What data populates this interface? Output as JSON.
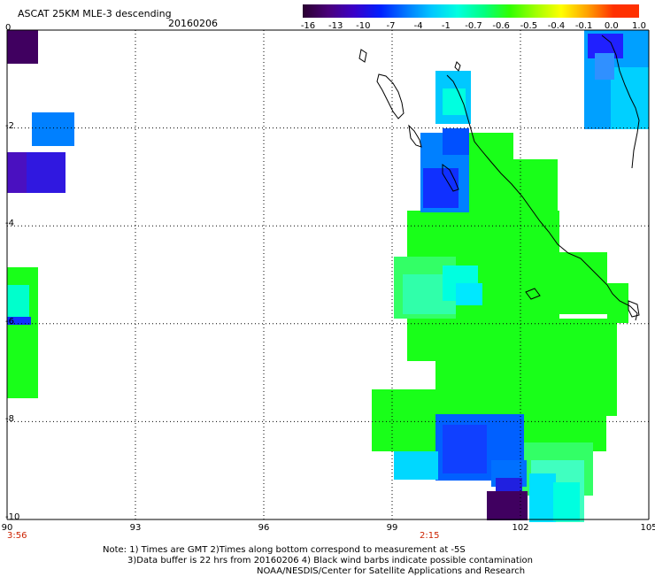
{
  "header": {
    "title": "ASCAT 25KM MLE-3 descending",
    "date": "20160206"
  },
  "colorbar": {
    "labels": [
      "-16",
      "-13",
      "-10",
      "-7",
      "-4",
      "-1",
      "-0.7",
      "-0.6",
      "-0.5",
      "-0.4",
      "-0.1",
      "0.0",
      "1.0"
    ],
    "colors": [
      "#2a0030",
      "#4a007a",
      "#3a00c8",
      "#0020ff",
      "#0078ff",
      "#00c8ff",
      "#00ffe0",
      "#00ff80",
      "#30ff00",
      "#a0ff00",
      "#ffff00",
      "#ffa000",
      "#ff3000"
    ]
  },
  "axes": {
    "x_ticks": [
      "90",
      "93",
      "96",
      "99",
      "102",
      "105"
    ],
    "y_ticks": [
      "0",
      "-2",
      "-4",
      "-6",
      "-8",
      "-10"
    ]
  },
  "times": {
    "left": "3:56",
    "center": "2:15"
  },
  "notes": {
    "line1": "Note: 1) Times are GMT 2)Times along bottom correspond to measurement at -5S",
    "line2": "3)Data buffer is 22 hrs from 20160206 4) Black wind barbs indicate possible contamination",
    "line3": "NOAA/NESDIS/Center for Satellite Applications and Research"
  }
}
